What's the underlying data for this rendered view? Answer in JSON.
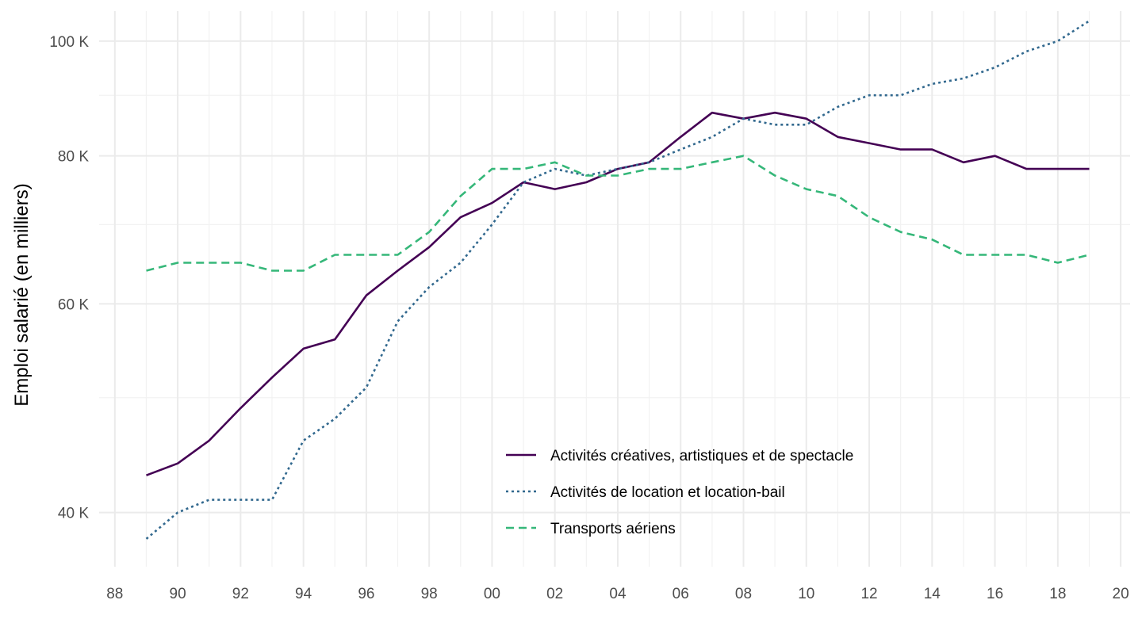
{
  "chart_data": {
    "type": "line",
    "title": "",
    "xlabel": "",
    "ylabel": "Emploi salarié (en milliers)",
    "y_scale": "log",
    "ylim": [
      36000,
      106000
    ],
    "xlim": [
      1987.5,
      2020.3
    ],
    "x_ticks": [
      1988,
      1990,
      1992,
      1994,
      1996,
      1998,
      2000,
      2002,
      2004,
      2006,
      2008,
      2010,
      2012,
      2014,
      2016,
      2018,
      2020
    ],
    "x_tick_labels": [
      "88",
      "90",
      "92",
      "94",
      "96",
      "98",
      "00",
      "02",
      "04",
      "06",
      "08",
      "10",
      "12",
      "14",
      "16",
      "18",
      "20"
    ],
    "y_ticks": [
      40000,
      60000,
      80000,
      100000
    ],
    "y_tick_labels": [
      "40 K",
      "60 K",
      "80 K",
      "100 K"
    ],
    "y_minor_ticks": [
      50000,
      70000,
      90000
    ],
    "grid": true,
    "legend_position": "bottom-center",
    "x": [
      1989,
      1990,
      1991,
      1992,
      1993,
      1994,
      1995,
      1996,
      1997,
      1998,
      1999,
      2000,
      2001,
      2002,
      2003,
      2004,
      2005,
      2006,
      2007,
      2008,
      2009,
      2010,
      2011,
      2012,
      2013,
      2014,
      2015,
      2016,
      2017,
      2018,
      2019
    ],
    "series": [
      {
        "name": "Activités créatives, artistiques et de spectacle",
        "color": "#440154",
        "dash": "solid",
        "values": [
          43000,
          44000,
          46000,
          49000,
          52000,
          55000,
          56000,
          61000,
          64000,
          67000,
          71000,
          73000,
          76000,
          75000,
          76000,
          78000,
          79000,
          83000,
          87000,
          86000,
          87000,
          86000,
          83000,
          82000,
          81000,
          81000,
          79000,
          80000,
          78000,
          78000,
          78000
        ]
      },
      {
        "name": "Activités de location et location-bail",
        "color": "#31688e",
        "dash": "dotted",
        "values": [
          38000,
          40000,
          41000,
          41000,
          41000,
          46000,
          48000,
          51000,
          58000,
          62000,
          65000,
          70000,
          76000,
          78000,
          77000,
          78000,
          79000,
          81000,
          83000,
          86000,
          85000,
          85000,
          88000,
          90000,
          90000,
          92000,
          93000,
          95000,
          98000,
          100000,
          104000
        ]
      },
      {
        "name": "Transports aériens",
        "color": "#35b779",
        "dash": "dashed",
        "values": [
          64000,
          65000,
          65000,
          65000,
          64000,
          64000,
          66000,
          66000,
          66000,
          69000,
          74000,
          78000,
          78000,
          79000,
          77000,
          77000,
          78000,
          78000,
          79000,
          80000,
          77000,
          75000,
          74000,
          71000,
          69000,
          68000,
          66000,
          66000,
          66000,
          65000,
          66000
        ]
      }
    ]
  }
}
